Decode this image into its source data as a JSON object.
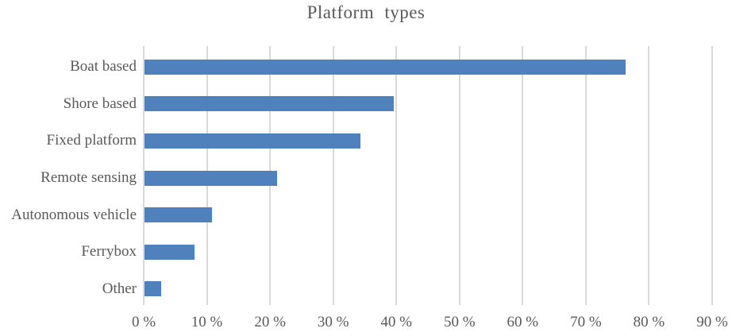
{
  "chart_data": {
    "type": "bar",
    "orientation": "horizontal",
    "title": "Platform types",
    "categories": [
      "Boat based",
      "Shore based",
      "Fixed platform",
      "Remote sensing",
      "Autonomous vehicle",
      "Ferrybox",
      "Other"
    ],
    "values": [
      76.2,
      39.5,
      34.2,
      21.0,
      10.7,
      7.9,
      2.7
    ],
    "unit": "%",
    "xlabel": "",
    "ylabel": "",
    "xlim": [
      0,
      90
    ],
    "x_tick_step": 10,
    "x_tick_labels": [
      "0 %",
      "10 %",
      "20 %",
      "30 %",
      "40 %",
      "50 %",
      "60 %",
      "70 %",
      "80 %",
      "90 %"
    ],
    "grid": "vertical",
    "legend": "none",
    "data_labels": "none",
    "colors": {
      "bar": "#4f81bd",
      "gridline": "#d9d9d9",
      "text": "#595959",
      "background": "#ffffff"
    }
  }
}
